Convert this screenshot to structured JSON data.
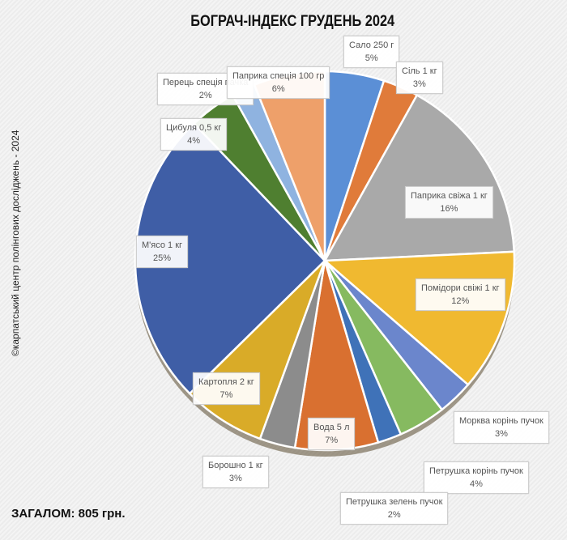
{
  "chart_data": {
    "type": "pie",
    "title": "БОГРАЧ-ІНДЕКС ГРУДЕНЬ 2024",
    "start": "top",
    "direction": "clockwise",
    "slices": [
      {
        "label": "Сало 250 г",
        "value": 5,
        "pct": "5%",
        "color": "#5b8fd6"
      },
      {
        "label": "Сіль 1 кг",
        "value": 3,
        "pct": "3%",
        "color": "#e07b3a"
      },
      {
        "label": "Паприка свіжа 1 кг",
        "value": 16,
        "pct": "16%",
        "color": "#a9a9a9"
      },
      {
        "label": "Помідори свіжі 1 кг",
        "value": 12,
        "pct": "12%",
        "color": "#f0b930"
      },
      {
        "label": "Морква корінь пучок",
        "value": 3,
        "pct": "3%",
        "color": "#6b86cc"
      },
      {
        "label": "Петрушка корінь пучок",
        "value": 4,
        "pct": "4%",
        "color": "#86ba60"
      },
      {
        "label": "Петрушка зелень пучок",
        "value": 2,
        "pct": "2%",
        "color": "#3f72b8"
      },
      {
        "label": "Вода 5 л",
        "value": 7,
        "pct": "7%",
        "color": "#d97030"
      },
      {
        "label": "Борошно 1 кг",
        "value": 3,
        "pct": "3%",
        "color": "#8c8c8c"
      },
      {
        "label": "Картопля 2 кг",
        "value": 7,
        "pct": "7%",
        "color": "#d9ab28"
      },
      {
        "label": "М'ясо 1 кг",
        "value": 25,
        "pct": "25%",
        "color": "#3f5ea6"
      },
      {
        "label": "Цибуля 0,5 кг",
        "value": 4,
        "pct": "4%",
        "color": "#4f7f30"
      },
      {
        "label": "Перець спеція пачка",
        "value": 2,
        "pct": "2%",
        "color": "#8fb3e0"
      },
      {
        "label": "Паприка спеція 100 гр",
        "value": 6,
        "pct": "6%",
        "color": "#eea06a"
      }
    ]
  },
  "copyright": "©карпатський центр полінгових досліджень - 2024",
  "total": "ЗАГАЛОМ: 805  грн."
}
